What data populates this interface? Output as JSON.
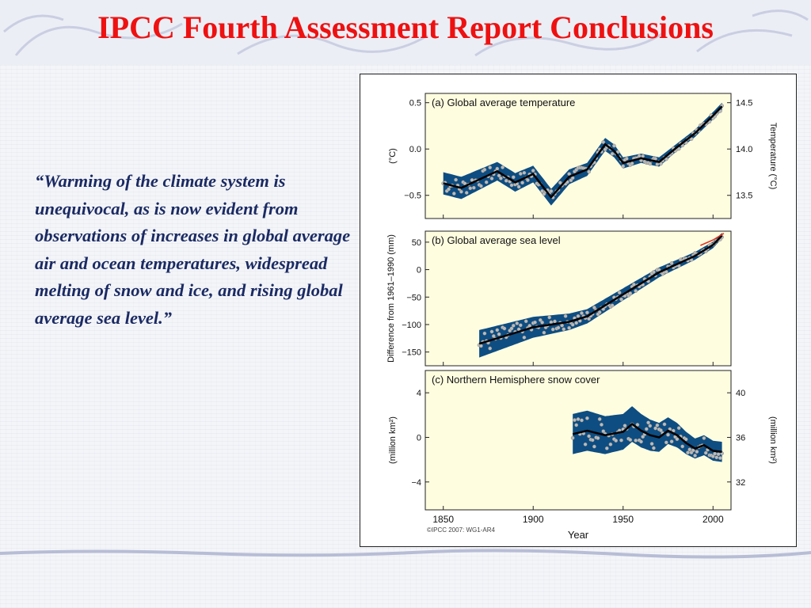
{
  "slide": {
    "title": "IPCC Fourth Assessment Report Conclusions",
    "quote": "“Warming of the climate system is unequivocal, as is now evident from observations of increases in global average air and ocean temperatures, widespread melting of snow and ice, and rising global average sea level.”"
  },
  "colors": {
    "title": "#ee1111",
    "quote": "#1a2a63",
    "panel_bg": "#fffde0",
    "band": "#0d4d82",
    "line": "#000000",
    "points": "#bbbbbb",
    "recent_sea_level": "#e03020"
  },
  "figure": {
    "credit": "©IPCC 2007: WG1-AR4",
    "xlabel": "Year",
    "x_ticks": [
      "1850",
      "1900",
      "1950",
      "2000"
    ]
  },
  "chart_data": [
    {
      "type": "line",
      "title": "(a) Global average temperature",
      "ylabel": "(°C)",
      "ylabel_right": "Temperature (°C)",
      "xlim": [
        1840,
        2010
      ],
      "ylim": [
        -0.75,
        0.6
      ],
      "y_ticks": [
        "0.5",
        "0.0",
        "−0.5"
      ],
      "y_ticks_right": [
        "14.5",
        "14.0",
        "13.5"
      ],
      "grid": false,
      "x": [
        1850,
        1860,
        1870,
        1880,
        1890,
        1900,
        1910,
        1920,
        1930,
        1940,
        1945,
        1950,
        1960,
        1970,
        1980,
        1990,
        2000,
        2005
      ],
      "series": [
        {
          "values": [
            -0.37,
            -0.42,
            -0.33,
            -0.24,
            -0.36,
            -0.27,
            -0.52,
            -0.3,
            -0.22,
            0.05,
            -0.02,
            -0.15,
            -0.1,
            -0.14,
            0.02,
            0.17,
            0.36,
            0.46
          ]
        }
      ],
      "band_halfwidth": [
        0.12,
        0.12,
        0.11,
        0.1,
        0.1,
        0.09,
        0.09,
        0.08,
        0.07,
        0.07,
        0.07,
        0.06,
        0.05,
        0.05,
        0.04,
        0.04,
        0.04,
        0.04
      ]
    },
    {
      "type": "line",
      "title": "(b) Global average sea level",
      "ylabel": "Difference from 1961–1990 (mm)",
      "xlim": [
        1840,
        2010
      ],
      "ylim": [
        -175,
        70
      ],
      "y_ticks": [
        "50",
        "0",
        "−50",
        "−100",
        "−150"
      ],
      "grid": false,
      "x": [
        1870,
        1880,
        1890,
        1900,
        1910,
        1920,
        1930,
        1940,
        1950,
        1960,
        1970,
        1980,
        1990,
        2000,
        2005
      ],
      "series": [
        {
          "values": [
            -135,
            -125,
            -115,
            -105,
            -100,
            -95,
            -85,
            -65,
            -45,
            -25,
            -5,
            10,
            25,
            45,
            62
          ]
        }
      ],
      "band_halfwidth": [
        25,
        23,
        21,
        19,
        17,
        15,
        13,
        12,
        11,
        10,
        9,
        8,
        7,
        6,
        5
      ],
      "recent_series": {
        "x": [
          1993,
          2000,
          2006
        ],
        "values": [
          44,
          54,
          66
        ]
      }
    },
    {
      "type": "line",
      "title": "(c) Northern Hemisphere snow cover",
      "ylabel": "(million km²)",
      "ylabel_right": "(million km²)",
      "xlim": [
        1840,
        2010
      ],
      "ylim": [
        -6.5,
        6
      ],
      "y_ticks": [
        "4",
        "0",
        "−4"
      ],
      "y_ticks_right": [
        "40",
        "36",
        "32"
      ],
      "grid": false,
      "x": [
        1922,
        1930,
        1940,
        1950,
        1955,
        1960,
        1965,
        1970,
        1975,
        1980,
        1985,
        1990,
        1995,
        2000,
        2005
      ],
      "series": [
        {
          "values": [
            0.3,
            0.6,
            0.2,
            0.5,
            1.2,
            0.6,
            0.2,
            0.0,
            0.6,
            0.2,
            -0.5,
            -1.0,
            -0.7,
            -1.2,
            -1.3
          ]
        }
      ],
      "band_halfwidth": [
        1.8,
        1.8,
        1.7,
        1.6,
        1.6,
        1.5,
        1.4,
        1.3,
        1.2,
        1.1,
        1.0,
        0.9,
        0.9,
        0.9,
        0.9
      ]
    }
  ]
}
